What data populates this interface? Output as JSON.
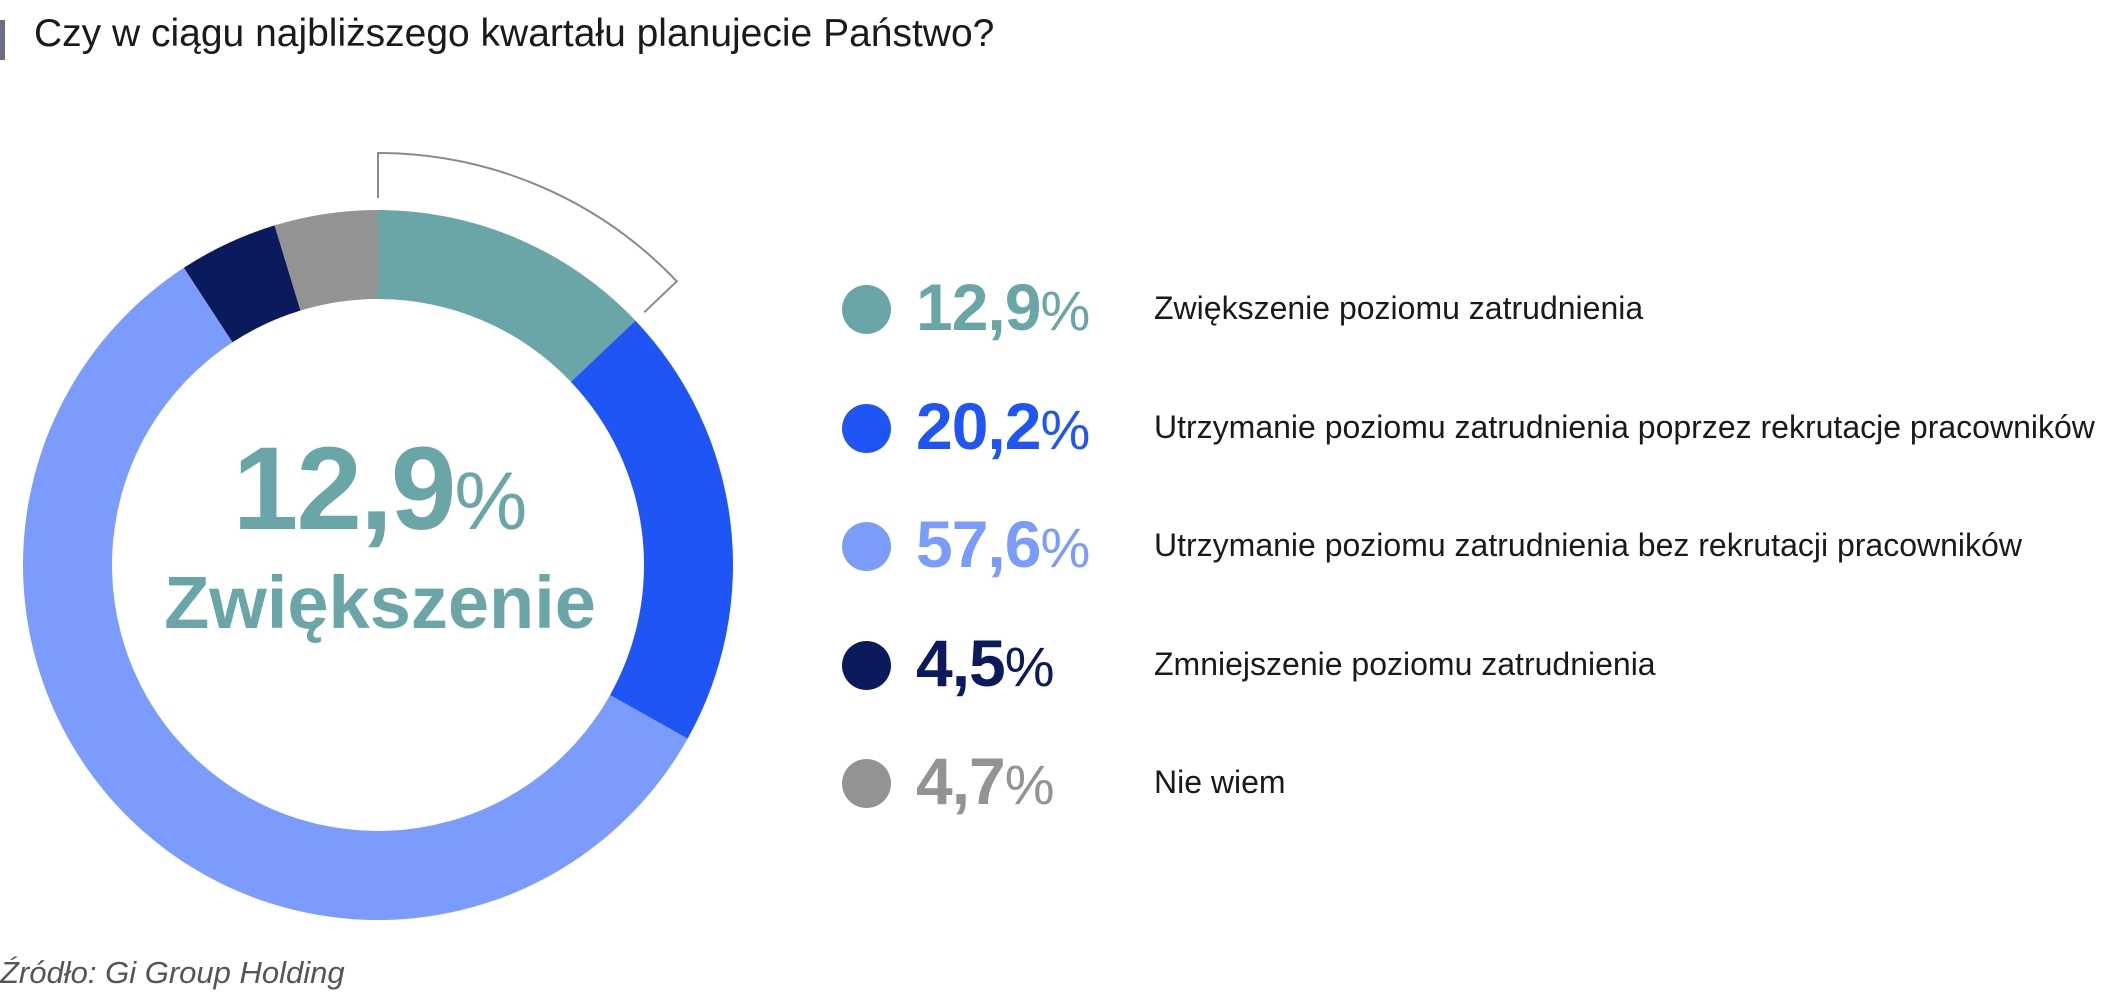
{
  "title": "Czy w ciągu najbliższego kwartału planujecie Państwo?",
  "source": "Źródło: Gi Group Holding",
  "center": {
    "value": "12,9",
    "percent_sign": "%",
    "label": "Zwiększenie",
    "color": "#6aa6a8"
  },
  "highlight_color": "#6aa6a8",
  "chart_data": {
    "type": "pie",
    "donut": true,
    "legend_position": "right",
    "categories": [
      "Zwiększenie poziomu zatrudnienia",
      "Utrzymanie poziomu zatrudnienia poprzez rekrutacje pracowników",
      "Utrzymanie poziomu zatrudnienia bez rekrutacji pracowników",
      "Zmniejszenie poziomu zatrudnienia",
      "Nie wiem"
    ],
    "values": [
      12.9,
      20.2,
      57.6,
      4.5,
      4.7
    ],
    "value_labels": [
      "12,9",
      "20,2",
      "57,6",
      "4,5",
      "4,7"
    ],
    "percent_sign": "%",
    "colors": [
      "#6aa6a8",
      "#1f55f5",
      "#7b9cfc",
      "#0a1a5c",
      "#939393"
    ],
    "highlighted_index": 0
  }
}
